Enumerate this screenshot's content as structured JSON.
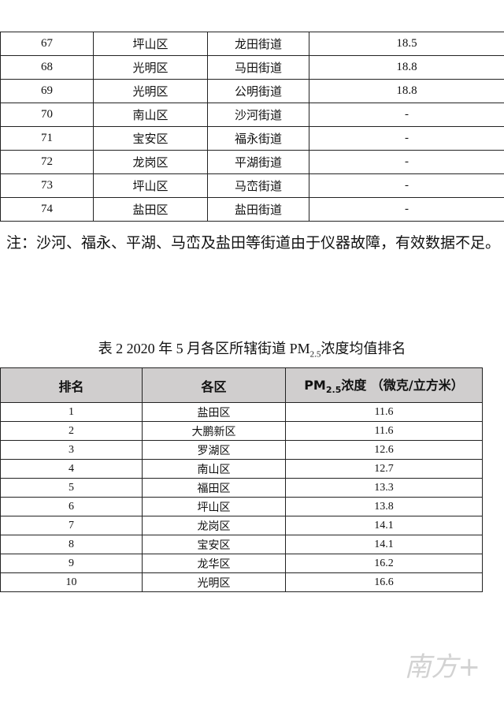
{
  "table1": {
    "rows": [
      [
        "67",
        "坪山区",
        "龙田街道",
        "18.5"
      ],
      [
        "68",
        "光明区",
        "马田街道",
        "18.8"
      ],
      [
        "69",
        "光明区",
        "公明街道",
        "18.8"
      ],
      [
        "70",
        "南山区",
        "沙河街道",
        "-"
      ],
      [
        "71",
        "宝安区",
        "福永街道",
        "-"
      ],
      [
        "72",
        "龙岗区",
        "平湖街道",
        "-"
      ],
      [
        "73",
        "坪山区",
        "马峦街道",
        "-"
      ],
      [
        "74",
        "盐田区",
        "盐田街道",
        "-"
      ]
    ]
  },
  "note": "注：沙河、福永、平湖、马峦及盐田等街道由于仪器故障，有效数据不足。",
  "table2": {
    "title": {
      "before": "表 2  2020 年 5 月各区所辖街道 PM",
      "sub": "2.5",
      "after": "浓度均值排名"
    },
    "header": {
      "rank": "排名",
      "district": "各区",
      "value_prefix": "PM",
      "value_sub": "2.5",
      "value_suffix": "浓度  （微克/立方米）"
    },
    "rows": [
      [
        "1",
        "盐田区",
        "11.6"
      ],
      [
        "2",
        "大鹏新区",
        "11.6"
      ],
      [
        "3",
        "罗湖区",
        "12.6"
      ],
      [
        "4",
        "南山区",
        "12.7"
      ],
      [
        "5",
        "福田区",
        "13.3"
      ],
      [
        "6",
        "坪山区",
        "13.8"
      ],
      [
        "7",
        "龙岗区",
        "14.1"
      ],
      [
        "8",
        "宝安区",
        "14.1"
      ],
      [
        "9",
        "龙华区",
        "16.2"
      ],
      [
        "10",
        "光明区",
        "16.6"
      ]
    ]
  },
  "watermark": "南方+"
}
